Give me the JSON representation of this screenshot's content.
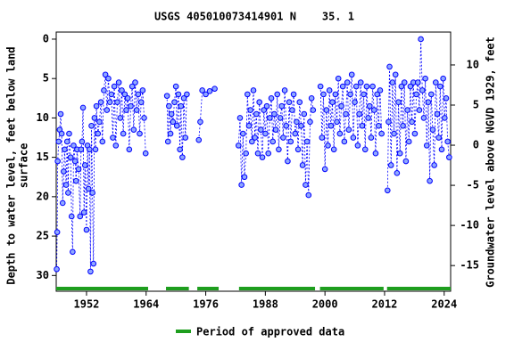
{
  "chart_data": {
    "type": "scatter",
    "title": "USGS 405010073414901 N    35. 1",
    "y_label": [
      "Depth to water level, feet below land",
      "surface"
    ],
    "y2_label": "Groundwater level above NGVD 1929, feet",
    "legend_label": "Period of approved data",
    "approved_color": "#1e9e1e",
    "approved_periods": [
      [
        1945.9,
        1964.4
      ],
      [
        1968.0,
        1972.6
      ],
      [
        1974.3,
        1978.6
      ],
      [
        1982.7,
        1998.0
      ],
      [
        1999.0,
        2011.8
      ],
      [
        2012.5,
        2025.3
      ]
    ],
    "xlim": [
      1945.9,
      2025.3
    ],
    "xticks": [
      1952,
      1964,
      1976,
      1988,
      2000,
      2012,
      2024
    ],
    "ylim": [
      32,
      -0.9
    ],
    "yticks": [
      0,
      5,
      10,
      15,
      20,
      25,
      30
    ],
    "y2lim": [
      -18.2,
      14.1
    ],
    "y2ticks": [
      -15,
      -10,
      -5,
      0,
      5,
      10
    ],
    "series": [
      {
        "color": "#0000ff",
        "x": [
          1946.0,
          1946.1,
          1946.2,
          1946.4,
          1946.6,
          1946.8,
          1947.0,
          1947.2,
          1947.4,
          1947.6,
          1947.9,
          1948.1,
          1948.3,
          1948.5,
          1948.8,
          1949.0,
          1949.2,
          1949.4,
          1949.7,
          1949.9,
          1950.1,
          1950.4,
          1950.7,
          1950.9,
          1951.1,
          1951.3,
          1951.5,
          1951.7,
          1952.0,
          1952.2,
          1952.4,
          1952.6,
          1952.8,
          1953.0,
          1953.2,
          1953.4,
          1953.6,
          1953.8,
          1954.0,
          1954.3,
          1954.6,
          1954.9,
          1955.2,
          1955.5,
          1955.8,
          1956.1,
          1956.4,
          1956.7,
          1957.0,
          1957.3,
          1957.6,
          1957.9,
          1958.2,
          1958.5,
          1958.8,
          1959.1,
          1959.4,
          1959.7,
          1960.0,
          1960.3,
          1960.6,
          1960.9,
          1961.2,
          1961.5,
          1961.8,
          1962.1,
          1962.4,
          1962.7,
          1963.0,
          1963.3,
          1963.6,
          1963.9,
          null,
          1968.2,
          1968.4,
          1968.6,
          1968.9,
          1969.1,
          1969.4,
          1969.7,
          1970.0,
          1970.2,
          1970.5,
          1970.8,
          1971.0,
          1971.3,
          1971.6,
          1971.9,
          1972.2,
          null,
          1974.6,
          1974.9,
          1975.3,
          1976.0,
          1976.8,
          1977.8,
          null,
          1982.6,
          1982.9,
          1983.2,
          1983.5,
          1983.8,
          1984.1,
          1984.4,
          1984.7,
          1985.0,
          1985.3,
          1985.6,
          1985.9,
          1986.2,
          1986.5,
          1986.8,
          1987.1,
          1987.4,
          1987.7,
          1988.0,
          1988.3,
          1988.6,
          1988.9,
          1989.2,
          1989.5,
          1989.8,
          1990.1,
          1990.4,
          1990.7,
          1991.0,
          1991.3,
          1991.6,
          1991.9,
          1992.2,
          1992.5,
          1992.8,
          1993.1,
          1993.4,
          1993.7,
          1994.0,
          1994.3,
          1994.6,
          1994.9,
          1995.2,
          1995.5,
          1995.8,
          1996.1,
          1996.4,
          1996.7,
          1997.0,
          1997.3,
          1997.6,
          null,
          1999.1,
          1999.4,
          1999.7,
          2000.0,
          2000.3,
          2000.6,
          2000.9,
          2001.2,
          2001.5,
          2001.8,
          2002.1,
          2002.4,
          2002.7,
          2003.0,
          2003.3,
          2003.6,
          2003.9,
          2004.2,
          2004.5,
          2004.8,
          2005.1,
          2005.4,
          2005.7,
          2006.0,
          2006.3,
          2006.6,
          2006.9,
          2007.2,
          2007.5,
          2007.8,
          2008.1,
          2008.4,
          2008.7,
          2009.0,
          2009.3,
          2009.6,
          2009.9,
          2010.2,
          2010.5,
          2010.8,
          2011.1,
          2011.4,
          null,
          2012.6,
          2012.8,
          2013.0,
          2013.3,
          2013.6,
          2013.9,
          2014.2,
          2014.5,
          2014.8,
          2015.1,
          2015.4,
          2015.7,
          2016.0,
          2016.3,
          2016.6,
          2016.9,
          2017.2,
          2017.5,
          2017.8,
          2018.1,
          2018.4,
          2018.7,
          2019.0,
          2019.3,
          2019.6,
          2019.9,
          2020.2,
          2020.5,
          2020.8,
          2021.1,
          2021.4,
          2021.7,
          2022.0,
          2022.3,
          2022.6,
          2022.9,
          2023.2,
          2023.5,
          2023.8,
          2024.1,
          2024.4,
          2024.7,
          2025.0
        ],
        "values": [
          29.2,
          24.5,
          15.5,
          13.0,
          11.5,
          9.5,
          12.0,
          20.8,
          16.8,
          14.0,
          18.5,
          13.0,
          19.5,
          12.0,
          15.0,
          22.5,
          27.0,
          13.5,
          15.5,
          18.0,
          14.0,
          16.5,
          22.5,
          14.0,
          13.0,
          8.7,
          22.0,
          16.0,
          24.2,
          13.5,
          19.0,
          14.0,
          29.5,
          11.0,
          19.5,
          28.5,
          10.0,
          14.0,
          8.5,
          12.0,
          10.5,
          8.0,
          13.0,
          6.5,
          4.5,
          9.0,
          5.0,
          8.0,
          7.0,
          12.5,
          6.0,
          13.5,
          8.0,
          5.5,
          10.0,
          6.5,
          12.0,
          7.0,
          9.0,
          7.5,
          14.0,
          8.5,
          6.0,
          11.5,
          5.5,
          9.0,
          7.0,
          12.0,
          8.0,
          6.5,
          10.0,
          14.5,
          null,
          7.2,
          13.0,
          8.5,
          12.0,
          9.5,
          10.5,
          8.0,
          6.0,
          11.0,
          7.0,
          14.0,
          8.5,
          15.0,
          7.5,
          12.5,
          7.0,
          null,
          12.8,
          10.5,
          6.5,
          7.0,
          6.6,
          6.3,
          null,
          13.5,
          10.0,
          18.5,
          12.0,
          17.5,
          14.5,
          7.0,
          11.0,
          9.0,
          13.0,
          6.5,
          12.5,
          9.5,
          14.5,
          8.0,
          11.5,
          15.0,
          9.0,
          12.0,
          8.5,
          14.5,
          10.0,
          7.5,
          13.0,
          9.5,
          11.5,
          7.0,
          14.0,
          10.0,
          8.5,
          12.5,
          6.5,
          11.0,
          15.5,
          8.0,
          13.0,
          9.0,
          7.0,
          12.0,
          10.5,
          14.0,
          8.0,
          11.0,
          16.0,
          9.5,
          18.5,
          13.0,
          19.8,
          10.5,
          7.5,
          9.0,
          null,
          6.0,
          12.5,
          7.0,
          16.5,
          9.0,
          13.5,
          6.5,
          11.0,
          8.0,
          14.0,
          7.0,
          10.5,
          5.0,
          12.0,
          8.5,
          6.0,
          13.0,
          9.5,
          5.5,
          11.5,
          7.0,
          4.5,
          12.5,
          8.0,
          6.0,
          13.5,
          9.5,
          5.5,
          11.0,
          7.0,
          14.0,
          6.0,
          10.0,
          8.5,
          12.5,
          6.0,
          9.0,
          14.5,
          7.0,
          11.0,
          6.5,
          12.0,
          null,
          19.2,
          10.5,
          3.5,
          16.0,
          5.5,
          12.0,
          4.5,
          17.0,
          8.0,
          14.5,
          6.0,
          11.0,
          5.5,
          15.5,
          9.0,
          13.0,
          6.0,
          10.5,
          5.5,
          12.0,
          7.0,
          5.5,
          9.0,
          0.0,
          6.5,
          10.0,
          5.0,
          13.5,
          8.0,
          18.0,
          7.0,
          11.5,
          16.0,
          5.5,
          9.5,
          12.5,
          6.0,
          14.0,
          5.0,
          10.0,
          7.5,
          13.0,
          15.0
        ]
      }
    ]
  }
}
